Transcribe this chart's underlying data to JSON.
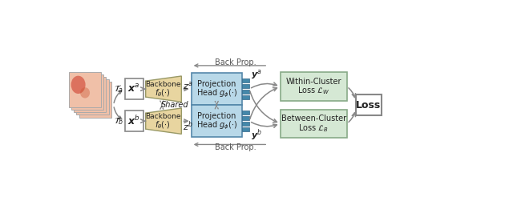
{
  "fig_width": 6.4,
  "fig_height": 2.46,
  "dpi": 100,
  "bg_color": "#ffffff",
  "box_white": "#ffffff",
  "box_tan": "#e8d5a0",
  "box_blue_light": "#b8d8e8",
  "box_green": "#d5e8d4",
  "box_loss": "#ffffff",
  "edge_tan": "#999966",
  "edge_blue": "#5588aa",
  "edge_green": "#88aa88",
  "edge_gray": "#888888",
  "arrow_gray": "#888888",
  "blue_bar": "#4488aa",
  "img_pink": "#f0c0a8",
  "img_edge": "#aaaaaa",
  "red_blob1": "#cc3322",
  "red_blob2": "#cc5533",
  "text_dark": "#222222",
  "text_gray": "#555555",
  "back_prop": "Back Prop.",
  "shared": "Shared",
  "xa": "$\\boldsymbol{x}^a$",
  "xb": "$\\boldsymbol{x}^b$",
  "za": "$z^a$",
  "zb": "$z^b$",
  "ya": "$\\boldsymbol{y}^a$",
  "yb": "$\\boldsymbol{y}^b$",
  "Ta": "$\\mathcal{T}_a$",
  "Tb": "$\\mathcal{T}_b$",
  "backbone_line1": "Backbone",
  "backbone_line2": "$f_{\\theta}(\\cdot)$",
  "projhead_line1": "Projection",
  "projhead_line2": "Head $g_{\\phi}(\\cdot)$",
  "within_line1": "Within-Cluster",
  "within_line2": "Loss $\\mathcal{L}_W$",
  "between_line1": "Between-Cluster",
  "between_line2": "Loss $\\mathcal{L}_B$",
  "loss": "Loss"
}
